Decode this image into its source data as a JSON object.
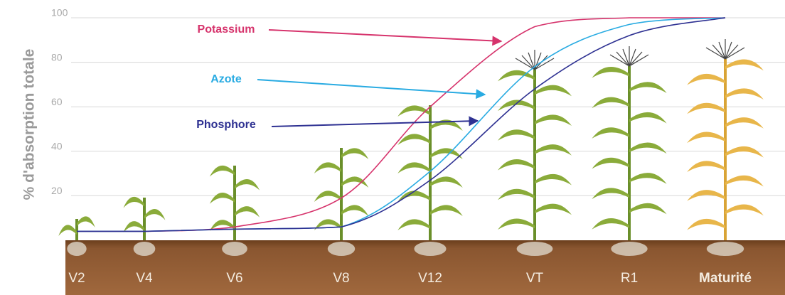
{
  "chart_data": {
    "type": "line",
    "y_label": "% d'absorption totale",
    "categories": [
      "V2",
      "V4",
      "V6",
      "V8",
      "V12",
      "VT",
      "R1",
      "Maturité"
    ],
    "series": [
      {
        "name": "Potassium",
        "color": "#d6336c",
        "values": [
          4,
          4,
          6,
          19,
          60,
          96,
          100,
          100
        ]
      },
      {
        "name": "Azote",
        "color": "#29abe2",
        "values": [
          4,
          4,
          5,
          6,
          31,
          78,
          97,
          100
        ]
      },
      {
        "name": "Phosphore",
        "color": "#2e3192",
        "values": [
          4,
          4,
          5,
          6,
          27,
          68,
          92,
          100
        ]
      }
    ],
    "ylim": [
      0,
      100
    ],
    "yticks": [
      20,
      40,
      60,
      80,
      100
    ],
    "grid": true
  }
}
